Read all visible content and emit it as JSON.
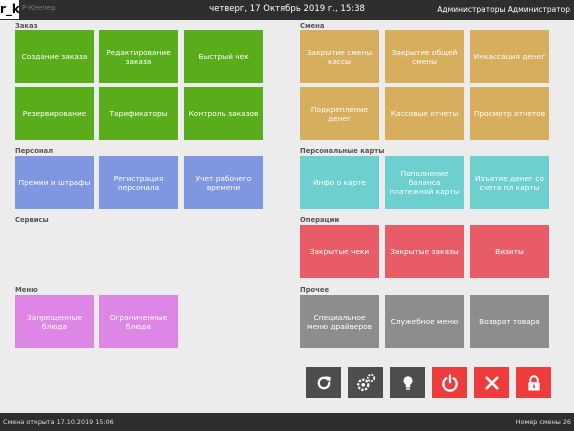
{
  "header": {
    "logo": "r_k",
    "logo_sub": "Р-Кеепер",
    "datetime": "четверг, 17 Октябрь 2019 г., 15:38",
    "user": "Администраторы Администратор"
  },
  "sections": {
    "order": {
      "title": "Заказ",
      "tiles": [
        "Создание заказа",
        "Редактирование заказа",
        "Быстрый чек",
        "Резервирование",
        "Тарификаторы",
        "Контроль заказов"
      ]
    },
    "personnel": {
      "title": "Персонал",
      "tiles": [
        "Премии и штрафы",
        "Регистрация персонала",
        "Учет рабочего времени"
      ]
    },
    "services": {
      "title": "Сервисы"
    },
    "menu": {
      "title": "Меню",
      "tiles": [
        "Запрещенные блюда",
        "Ограниченные блюда"
      ]
    },
    "shift": {
      "title": "Смена",
      "tiles": [
        "Закрытие смены кассы",
        "Закрытие общей смены",
        "Инкассация денег",
        "Подкрепление денег",
        "Кассовые отчеты",
        "Просмотр отчетов"
      ]
    },
    "cards": {
      "title": "Персональные карты",
      "tiles": [
        "Инфо о карте",
        "Пополнение баланса платежной карты",
        "Изъятие денег со счета пл карты"
      ]
    },
    "operations": {
      "title": "Операции",
      "tiles": [
        "Закрытые чеки",
        "Закрытые заказы",
        "Визиты"
      ]
    },
    "other": {
      "title": "Прочее",
      "tiles": [
        "Специальное меню драйверов",
        "Служебное меню",
        "Возврат товара"
      ]
    }
  },
  "actions": [
    {
      "icon": "refresh-icon",
      "color": "#4d4d4d"
    },
    {
      "icon": "gears-icon",
      "color": "#4d4d4d"
    },
    {
      "icon": "lightbulb-icon",
      "color": "#4d4d4d"
    },
    {
      "icon": "power-icon",
      "color": "#ee3b3b"
    },
    {
      "icon": "close-icon",
      "color": "#ee3b3b"
    },
    {
      "icon": "lock-icon",
      "color": "#ee3b3b"
    }
  ],
  "status": {
    "left": "Смена открыта 17.10.2019 15:06",
    "right": "Номер смены 26"
  }
}
